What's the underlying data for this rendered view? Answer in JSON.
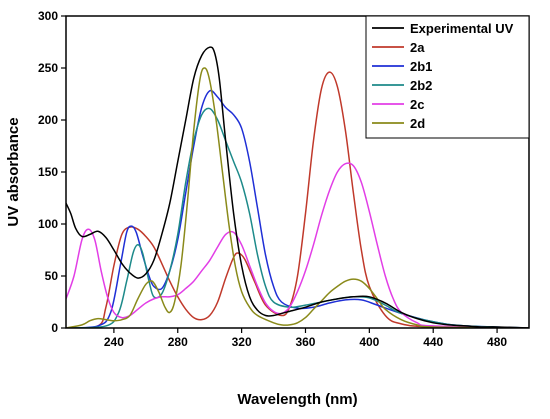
{
  "chart_data": {
    "type": "line",
    "title": "",
    "xlabel": "Wavelength (nm)",
    "ylabel": "UV absorbance",
    "xlim": [
      210,
      500
    ],
    "ylim": [
      0,
      300
    ],
    "xticks": [
      240,
      280,
      320,
      360,
      400,
      440,
      480
    ],
    "xtick_labels": [
      "240",
      "280",
      "320",
      "360",
      "400",
      "440",
      "480"
    ],
    "yticks": [
      0,
      50,
      100,
      150,
      200,
      250,
      300
    ],
    "ytick_labels": [
      "0",
      "50",
      "100",
      "150",
      "200",
      "250",
      "300"
    ],
    "grid": false,
    "legend_position": "top-right",
    "series": [
      {
        "name": "Experimental UV",
        "color": "#000000",
        "points": [
          [
            210,
            120
          ],
          [
            213,
            110
          ],
          [
            216,
            96
          ],
          [
            220,
            88
          ],
          [
            225,
            90
          ],
          [
            230,
            93
          ],
          [
            235,
            87
          ],
          [
            240,
            75
          ],
          [
            245,
            62
          ],
          [
            250,
            53
          ],
          [
            255,
            48
          ],
          [
            260,
            52
          ],
          [
            265,
            65
          ],
          [
            270,
            90
          ],
          [
            275,
            120
          ],
          [
            280,
            160
          ],
          [
            285,
            200
          ],
          [
            290,
            240
          ],
          [
            295,
            262
          ],
          [
            300,
            270
          ],
          [
            303,
            265
          ],
          [
            306,
            240
          ],
          [
            310,
            180
          ],
          [
            315,
            110
          ],
          [
            320,
            60
          ],
          [
            325,
            30
          ],
          [
            330,
            17
          ],
          [
            335,
            12
          ],
          [
            340,
            12
          ],
          [
            345,
            14
          ],
          [
            350,
            16
          ],
          [
            360,
            20
          ],
          [
            370,
            25
          ],
          [
            380,
            28
          ],
          [
            390,
            30
          ],
          [
            400,
            30
          ],
          [
            410,
            24
          ],
          [
            420,
            15
          ],
          [
            430,
            9
          ],
          [
            440,
            5
          ],
          [
            450,
            3
          ],
          [
            460,
            2
          ],
          [
            470,
            1
          ],
          [
            480,
            1
          ],
          [
            500,
            0
          ]
        ]
      },
      {
        "name": "2a",
        "color": "#c0392b",
        "points": [
          [
            210,
            0
          ],
          [
            230,
            2
          ],
          [
            235,
            20
          ],
          [
            240,
            60
          ],
          [
            245,
            90
          ],
          [
            250,
            97
          ],
          [
            255,
            95
          ],
          [
            260,
            88
          ],
          [
            265,
            78
          ],
          [
            270,
            62
          ],
          [
            275,
            45
          ],
          [
            280,
            30
          ],
          [
            285,
            18
          ],
          [
            290,
            10
          ],
          [
            295,
            8
          ],
          [
            300,
            12
          ],
          [
            305,
            25
          ],
          [
            310,
            48
          ],
          [
            315,
            68
          ],
          [
            318,
            72
          ],
          [
            322,
            66
          ],
          [
            328,
            45
          ],
          [
            335,
            22
          ],
          [
            345,
            12
          ],
          [
            350,
            20
          ],
          [
            355,
            50
          ],
          [
            360,
            110
          ],
          [
            365,
            180
          ],
          [
            370,
            230
          ],
          [
            375,
            246
          ],
          [
            380,
            232
          ],
          [
            385,
            190
          ],
          [
            390,
            130
          ],
          [
            395,
            75
          ],
          [
            400,
            40
          ],
          [
            410,
            12
          ],
          [
            420,
            4
          ],
          [
            440,
            1
          ],
          [
            500,
            0
          ]
        ]
      },
      {
        "name": "2b1",
        "color": "#1f2fd6",
        "points": [
          [
            210,
            0
          ],
          [
            230,
            2
          ],
          [
            238,
            15
          ],
          [
            244,
            60
          ],
          [
            248,
            92
          ],
          [
            251,
            98
          ],
          [
            254,
            92
          ],
          [
            258,
            70
          ],
          [
            262,
            50
          ],
          [
            265,
            40
          ],
          [
            270,
            38
          ],
          [
            275,
            55
          ],
          [
            280,
            85
          ],
          [
            285,
            130
          ],
          [
            290,
            175
          ],
          [
            295,
            212
          ],
          [
            300,
            228
          ],
          [
            305,
            222
          ],
          [
            310,
            212
          ],
          [
            315,
            205
          ],
          [
            320,
            192
          ],
          [
            325,
            160
          ],
          [
            330,
            115
          ],
          [
            335,
            70
          ],
          [
            340,
            40
          ],
          [
            345,
            25
          ],
          [
            355,
            19
          ],
          [
            365,
            20
          ],
          [
            375,
            24
          ],
          [
            385,
            27
          ],
          [
            395,
            27
          ],
          [
            405,
            22
          ],
          [
            420,
            14
          ],
          [
            440,
            6
          ],
          [
            460,
            2
          ],
          [
            500,
            0
          ]
        ]
      },
      {
        "name": "2b2",
        "color": "#1d8a8a",
        "points": [
          [
            210,
            0
          ],
          [
            235,
            2
          ],
          [
            243,
            15
          ],
          [
            248,
            45
          ],
          [
            252,
            72
          ],
          [
            255,
            80
          ],
          [
            258,
            72
          ],
          [
            262,
            45
          ],
          [
            265,
            30
          ],
          [
            270,
            33
          ],
          [
            275,
            55
          ],
          [
            280,
            90
          ],
          [
            285,
            140
          ],
          [
            290,
            180
          ],
          [
            295,
            205
          ],
          [
            300,
            211
          ],
          [
            305,
            200
          ],
          [
            310,
            180
          ],
          [
            315,
            160
          ],
          [
            320,
            140
          ],
          [
            325,
            110
          ],
          [
            330,
            70
          ],
          [
            335,
            40
          ],
          [
            340,
            25
          ],
          [
            350,
            20
          ],
          [
            360,
            22
          ],
          [
            370,
            25
          ],
          [
            380,
            28
          ],
          [
            390,
            30
          ],
          [
            400,
            29
          ],
          [
            410,
            22
          ],
          [
            420,
            14
          ],
          [
            440,
            6
          ],
          [
            460,
            2
          ],
          [
            500,
            0
          ]
        ]
      },
      {
        "name": "2c",
        "color": "#e23ee6",
        "points": [
          [
            210,
            28
          ],
          [
            215,
            50
          ],
          [
            220,
            85
          ],
          [
            224,
            95
          ],
          [
            228,
            85
          ],
          [
            232,
            55
          ],
          [
            236,
            30
          ],
          [
            240,
            15
          ],
          [
            245,
            10
          ],
          [
            250,
            12
          ],
          [
            255,
            18
          ],
          [
            260,
            24
          ],
          [
            265,
            28
          ],
          [
            270,
            30
          ],
          [
            275,
            30
          ],
          [
            280,
            32
          ],
          [
            285,
            38
          ],
          [
            290,
            45
          ],
          [
            295,
            55
          ],
          [
            300,
            65
          ],
          [
            305,
            78
          ],
          [
            310,
            90
          ],
          [
            315,
            92
          ],
          [
            320,
            80
          ],
          [
            325,
            60
          ],
          [
            330,
            40
          ],
          [
            335,
            24
          ],
          [
            340,
            16
          ],
          [
            345,
            14
          ],
          [
            350,
            20
          ],
          [
            355,
            35
          ],
          [
            360,
            55
          ],
          [
            365,
            80
          ],
          [
            370,
            108
          ],
          [
            375,
            132
          ],
          [
            380,
            150
          ],
          [
            385,
            158
          ],
          [
            390,
            156
          ],
          [
            395,
            140
          ],
          [
            400,
            112
          ],
          [
            405,
            80
          ],
          [
            410,
            50
          ],
          [
            415,
            28
          ],
          [
            420,
            15
          ],
          [
            430,
            5
          ],
          [
            440,
            2
          ],
          [
            500,
            0
          ]
        ]
      },
      {
        "name": "2d",
        "color": "#8a8a1a",
        "points": [
          [
            210,
            0
          ],
          [
            220,
            3
          ],
          [
            225,
            7
          ],
          [
            230,
            9
          ],
          [
            235,
            8
          ],
          [
            240,
            7
          ],
          [
            245,
            8
          ],
          [
            250,
            12
          ],
          [
            255,
            28
          ],
          [
            260,
            42
          ],
          [
            264,
            45
          ],
          [
            268,
            35
          ],
          [
            272,
            20
          ],
          [
            275,
            15
          ],
          [
            278,
            25
          ],
          [
            282,
            60
          ],
          [
            286,
            120
          ],
          [
            290,
            190
          ],
          [
            294,
            240
          ],
          [
            297,
            250
          ],
          [
            300,
            238
          ],
          [
            304,
            200
          ],
          [
            308,
            150
          ],
          [
            312,
            100
          ],
          [
            316,
            60
          ],
          [
            320,
            35
          ],
          [
            325,
            20
          ],
          [
            330,
            12
          ],
          [
            340,
            5
          ],
          [
            345,
            3
          ],
          [
            350,
            3
          ],
          [
            355,
            5
          ],
          [
            360,
            10
          ],
          [
            365,
            18
          ],
          [
            370,
            26
          ],
          [
            375,
            34
          ],
          [
            380,
            40
          ],
          [
            385,
            45
          ],
          [
            390,
            47
          ],
          [
            395,
            45
          ],
          [
            400,
            38
          ],
          [
            405,
            28
          ],
          [
            410,
            18
          ],
          [
            420,
            8
          ],
          [
            430,
            3
          ],
          [
            440,
            1
          ],
          [
            500,
            0
          ]
        ]
      }
    ]
  }
}
